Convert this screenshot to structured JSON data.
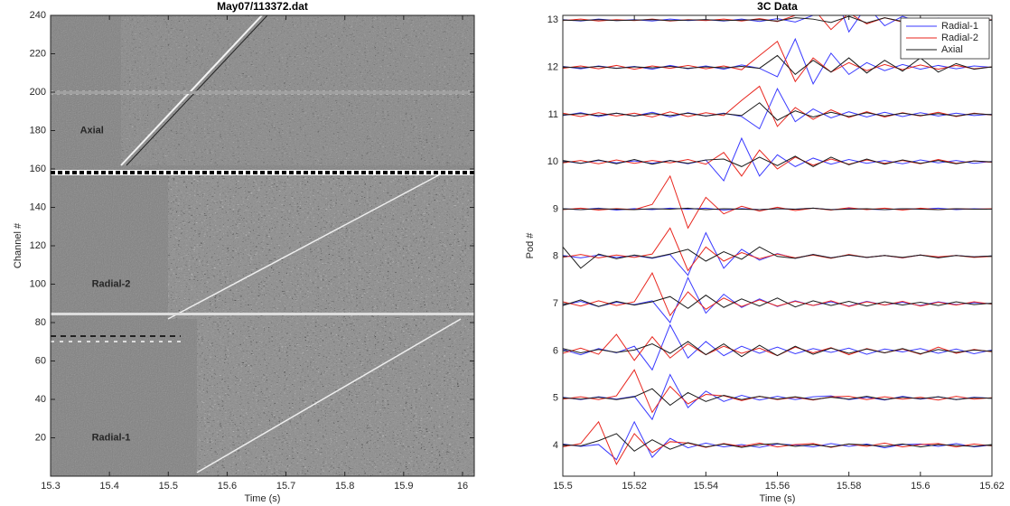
{
  "chart_data": [
    {
      "type": "image",
      "title": "May07/113372.dat",
      "x_label": "Time (s)",
      "y_label": "Channel #",
      "xlim": [
        15.3,
        16.02
      ],
      "xticks": [
        15.3,
        15.4,
        15.5,
        15.6,
        15.7,
        15.8,
        15.9,
        16
      ],
      "ylim": [
        0,
        240
      ],
      "yticks": [
        20,
        40,
        60,
        80,
        100,
        120,
        140,
        160,
        180,
        200,
        220,
        240
      ],
      "annotations": [
        {
          "text": "Axial",
          "x": 15.35,
          "y": 180,
          "color": "#ffff00"
        },
        {
          "text": "Radial-2",
          "x": 15.37,
          "y": 100,
          "color": "#ffff00"
        },
        {
          "text": "Radial-1",
          "x": 15.37,
          "y": 20,
          "color": "#ffff00"
        }
      ]
    },
    {
      "type": "line",
      "title": "3C Data",
      "x_label": "Time (s)",
      "y_label": "Pod #",
      "xlim": [
        15.5,
        15.62
      ],
      "xticks": [
        15.5,
        15.52,
        15.54,
        15.56,
        15.58,
        15.6,
        15.62
      ],
      "ylim": [
        3.35,
        13.1
      ],
      "yticks": [
        4,
        5,
        6,
        7,
        8,
        9,
        10,
        11,
        12,
        13
      ],
      "legend": "upper right",
      "x": [
        15.5,
        15.505,
        15.51,
        15.515,
        15.52,
        15.525,
        15.53,
        15.535,
        15.54,
        15.545,
        15.55,
        15.555,
        15.56,
        15.565,
        15.57,
        15.575,
        15.58,
        15.585,
        15.59,
        15.595,
        15.6,
        15.605,
        15.61,
        15.615,
        15.62
      ],
      "series": [
        {
          "name": "Radial-1",
          "color": "#3a3aff",
          "values": [
            [
              4.03,
              3.98,
              4.02,
              3.7,
              4.5,
              3.75,
              4.15,
              3.95,
              4.05,
              3.97,
              4.02,
              3.96,
              4.03,
              4.01,
              3.97,
              4.04,
              3.98,
              4.03,
              3.95,
              4.02,
              4.03,
              3.98,
              4.04,
              3.97,
              4.01
            ],
            [
              5.02,
              4.97,
              5.03,
              4.98,
              5.04,
              4.55,
              5.5,
              4.8,
              5.15,
              4.93,
              5.06,
              4.96,
              5.04,
              4.97,
              5.03,
              5.05,
              4.97,
              5.02,
              4.96,
              5.04,
              4.98,
              5.03,
              4.97,
              5.02,
              5.0
            ],
            [
              6.03,
              5.92,
              6.05,
              5.96,
              6.1,
              5.6,
              6.55,
              5.85,
              6.2,
              5.9,
              6.1,
              5.95,
              6.08,
              5.94,
              6.05,
              5.97,
              6.06,
              5.93,
              6.04,
              5.98,
              6.05,
              5.95,
              6.04,
              5.94,
              6.02
            ],
            [
              6.97,
              7.05,
              6.94,
              7.03,
              6.98,
              7.06,
              6.6,
              7.55,
              6.8,
              7.2,
              6.92,
              7.1,
              6.94,
              7.06,
              6.96,
              7.04,
              6.95,
              7.05,
              6.97,
              7.03,
              6.96,
              7.04,
              6.98,
              7.02,
              7.0
            ],
            [
              8.02,
              7.97,
              8.03,
              7.98,
              8.02,
              7.96,
              8.04,
              7.6,
              8.5,
              7.75,
              8.15,
              7.92,
              8.06,
              7.96,
              8.04,
              7.97,
              8.03,
              7.98,
              8.02,
              7.97,
              8.03,
              7.98,
              8.02,
              7.99,
              8.01
            ],
            [
              9.01,
              8.99,
              9.02,
              8.98,
              9.01,
              8.99,
              9.02,
              9.0,
              9.02,
              8.98,
              9.01,
              8.99,
              9.01,
              9.0,
              9.02,
              8.99,
              9.01,
              9.0,
              8.99,
              9.01,
              9.0,
              9.02,
              8.99,
              9.01,
              9.0
            ],
            [
              10.02,
              9.97,
              10.03,
              9.98,
              10.02,
              9.97,
              10.03,
              9.96,
              10.04,
              9.6,
              10.5,
              9.7,
              10.15,
              9.9,
              10.08,
              9.95,
              10.05,
              9.97,
              10.03,
              9.96,
              10.04,
              9.98,
              10.03,
              9.97,
              10.01
            ],
            [
              10.98,
              11.04,
              10.96,
              11.03,
              10.97,
              11.05,
              10.95,
              11.04,
              10.97,
              11.03,
              10.96,
              10.7,
              11.55,
              10.85,
              11.12,
              10.93,
              11.06,
              10.95,
              11.05,
              10.96,
              11.04,
              10.97,
              11.03,
              10.98,
              11.01
            ],
            [
              12.02,
              11.97,
              12.03,
              11.98,
              12.02,
              11.96,
              12.04,
              11.97,
              12.03,
              11.96,
              12.05,
              11.98,
              11.8,
              12.6,
              11.65,
              12.3,
              11.85,
              12.1,
              11.93,
              12.06,
              11.96,
              12.04,
              11.97,
              12.03,
              12.0
            ],
            [
              13.01,
              12.98,
              13.02,
              12.99,
              13.01,
              12.98,
              13.02,
              12.99,
              13.01,
              12.98,
              13.02,
              12.97,
              13.03,
              12.96,
              13.1,
              13.8,
              12.75,
              13.3,
              12.88,
              13.08,
              12.95,
              13.04,
              12.97,
              13.02,
              13.0
            ]
          ]
        },
        {
          "name": "Radial-2",
          "color": "#e8261e",
          "values": [
            [
              3.97,
              4.04,
              4.5,
              3.6,
              4.25,
              3.85,
              4.08,
              4.05,
              3.96,
              4.04,
              3.98,
              4.05,
              3.97,
              4.02,
              4.04,
              3.96,
              4.03,
              3.98,
              4.05,
              3.97,
              4.02,
              4.04,
              3.97,
              4.03,
              3.99
            ],
            [
              4.98,
              5.03,
              4.97,
              5.05,
              5.6,
              4.7,
              5.25,
              4.88,
              5.08,
              5.05,
              4.95,
              5.04,
              4.97,
              5.02,
              4.96,
              5.03,
              5.04,
              4.97,
              5.03,
              4.98,
              5.02,
              4.96,
              5.04,
              4.98,
              5.01
            ],
            [
              5.95,
              6.06,
              5.93,
              6.35,
              5.8,
              6.3,
              5.85,
              6.15,
              5.92,
              6.1,
              5.95,
              6.06,
              5.9,
              6.08,
              5.96,
              6.07,
              5.92,
              6.05,
              5.96,
              6.04,
              5.93,
              6.08,
              5.95,
              6.03,
              5.98
            ],
            [
              7.04,
              6.95,
              7.06,
              6.96,
              7.04,
              7.65,
              6.75,
              7.25,
              6.88,
              7.12,
              6.94,
              7.08,
              6.95,
              7.05,
              6.96,
              7.06,
              6.94,
              7.04,
              6.97,
              7.05,
              6.95,
              7.03,
              6.97,
              7.04,
              6.99
            ],
            [
              7.98,
              8.04,
              7.97,
              8.03,
              7.98,
              8.05,
              8.6,
              7.7,
              8.2,
              7.9,
              8.08,
              7.95,
              8.05,
              7.97,
              8.03,
              7.96,
              8.04,
              7.98,
              8.02,
              7.97,
              8.03,
              7.99,
              8.02,
              7.98,
              8.0
            ],
            [
              8.99,
              9.02,
              8.98,
              9.01,
              8.99,
              9.1,
              9.7,
              8.6,
              9.25,
              8.9,
              9.06,
              8.96,
              9.04,
              8.97,
              9.02,
              8.98,
              9.03,
              8.99,
              9.02,
              8.98,
              9.02,
              8.99,
              9.01,
              9.0,
              9.01
            ],
            [
              9.98,
              10.03,
              9.96,
              10.04,
              9.97,
              10.03,
              9.98,
              10.05,
              9.95,
              10.2,
              9.7,
              10.25,
              9.85,
              10.1,
              9.93,
              10.06,
              9.95,
              10.04,
              9.97,
              10.03,
              9.96,
              10.05,
              9.97,
              10.02,
              9.99
            ],
            [
              11.03,
              10.96,
              11.04,
              10.97,
              11.03,
              10.95,
              11.06,
              10.96,
              11.04,
              10.98,
              11.3,
              11.6,
              10.75,
              11.15,
              10.9,
              11.1,
              10.94,
              11.06,
              10.95,
              11.04,
              10.97,
              11.05,
              10.96,
              11.03,
              10.99
            ],
            [
              11.98,
              12.03,
              11.97,
              12.04,
              11.96,
              12.03,
              11.98,
              12.04,
              11.97,
              12.03,
              11.95,
              12.25,
              12.55,
              11.7,
              12.2,
              11.9,
              12.1,
              11.93,
              12.06,
              11.95,
              12.05,
              11.96,
              12.04,
              11.97,
              12.01
            ],
            [
              12.99,
              13.02,
              12.98,
              13.01,
              12.99,
              13.02,
              12.98,
              13.01,
              12.99,
              13.02,
              12.98,
              13.03,
              12.97,
              13.1,
              13.25,
              12.8,
              13.15,
              12.92,
              13.05,
              12.96,
              13.04,
              12.97,
              13.03,
              12.98,
              13.01
            ]
          ]
        },
        {
          "name": "Axial",
          "color": "#1a1a1a",
          "values": [
            [
              4.02,
              3.99,
              4.1,
              4.25,
              3.88,
              4.12,
              3.92,
              4.06,
              3.97,
              4.03,
              3.96,
              4.02,
              4.04,
              3.98,
              4.02,
              3.97,
              4.03,
              4.01,
              3.98,
              4.03,
              3.97,
              4.02,
              4.0,
              3.98,
              4.02
            ],
            [
              5.01,
              4.98,
              5.02,
              4.97,
              5.03,
              5.2,
              4.85,
              5.12,
              4.93,
              5.06,
              4.97,
              5.04,
              4.98,
              5.03,
              4.97,
              5.02,
              4.98,
              5.04,
              4.97,
              5.02,
              4.99,
              5.03,
              4.97,
              5.01,
              5.0
            ],
            [
              6.05,
              5.96,
              6.03,
              5.97,
              6.02,
              6.15,
              5.95,
              6.2,
              5.92,
              6.15,
              5.88,
              6.12,
              5.9,
              6.1,
              5.93,
              6.06,
              5.95,
              6.04,
              5.96,
              6.05,
              5.94,
              6.03,
              5.97,
              6.02,
              5.99
            ],
            [
              6.96,
              7.08,
              6.94,
              7.05,
              6.97,
              7.04,
              7.15,
              6.9,
              7.18,
              6.92,
              7.1,
              6.95,
              7.12,
              6.93,
              7.06,
              6.96,
              7.05,
              6.95,
              7.04,
              6.97,
              7.03,
              6.96,
              7.04,
              6.98,
              7.01
            ],
            [
              8.2,
              7.75,
              8.05,
              7.95,
              8.03,
              7.97,
              8.05,
              8.15,
              7.9,
              8.1,
              7.94,
              8.2,
              8.0,
              7.96,
              8.04,
              7.97,
              8.03,
              7.98,
              8.02,
              7.98,
              8.03,
              7.97,
              8.02,
              7.99,
              8.01
            ],
            [
              9.01,
              8.99,
              9.01,
              9.0,
              8.99,
              9.01,
              9.0,
              9.02,
              8.99,
              9.01,
              9.0,
              8.99,
              9.01,
              9.0,
              9.02,
              8.99,
              9.0,
              9.01,
              8.99,
              9.01,
              9.0,
              8.99,
              9.01,
              9.0,
              9.0
            ],
            [
              10.03,
              9.97,
              10.04,
              9.96,
              10.05,
              9.95,
              10.03,
              9.97,
              10.04,
              10.06,
              9.9,
              10.1,
              9.92,
              10.12,
              9.9,
              10.1,
              9.94,
              10.06,
              9.95,
              10.04,
              9.97,
              10.03,
              9.96,
              10.02,
              10.0
            ],
            [
              10.99,
              11.02,
              10.98,
              11.03,
              10.97,
              11.02,
              10.98,
              11.03,
              10.97,
              11.02,
              10.98,
              11.25,
              10.88,
              11.08,
              10.95,
              11.05,
              10.96,
              11.04,
              10.97,
              11.03,
              10.98,
              11.02,
              10.97,
              11.02,
              11.0
            ],
            [
              12.01,
              11.99,
              12.02,
              11.98,
              12.01,
              11.99,
              12.02,
              11.98,
              12.01,
              11.99,
              12.02,
              11.98,
              12.25,
              11.85,
              12.15,
              11.9,
              12.2,
              11.88,
              12.15,
              11.92,
              12.2,
              11.9,
              12.08,
              11.96,
              12.01
            ],
            [
              13.0,
              12.99,
              13.01,
              12.99,
              13.0,
              13.01,
              12.99,
              13.0,
              13.01,
              12.99,
              13.0,
              13.01,
              12.98,
              13.05,
              13.02,
              12.95,
              13.08,
              12.94,
              13.05,
              12.97,
              13.03,
              12.98,
              13.02,
              12.99,
              13.0
            ]
          ]
        }
      ]
    }
  ]
}
